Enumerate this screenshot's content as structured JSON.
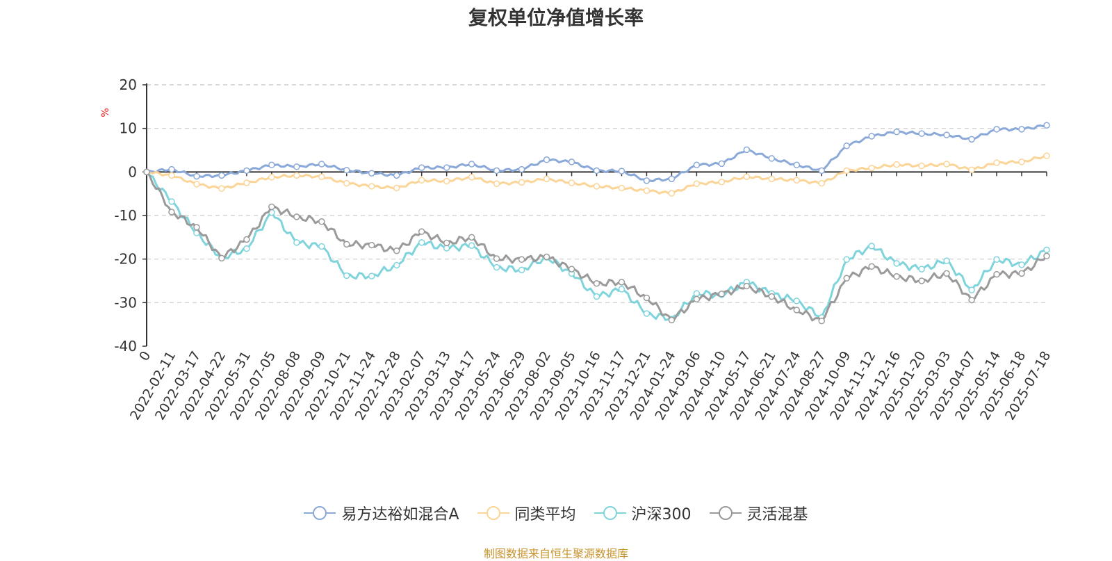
{
  "chart_data": {
    "type": "line",
    "title": "复权单位净值增长率",
    "ylabel": "%",
    "ylim": [
      -40,
      20
    ],
    "yticks": [
      20,
      10,
      0,
      -10,
      -20,
      -30,
      -40
    ],
    "grid": true,
    "legend_position": "bottom-center",
    "x_tick_labels": [
      "0",
      "2022-02-11",
      "2022-03-17",
      "2022-04-22",
      "2022-05-31",
      "2022-07-05",
      "2022-08-08",
      "2022-09-09",
      "2022-10-21",
      "2022-11-24",
      "2022-12-28",
      "2023-02-07",
      "2023-03-13",
      "2023-04-17",
      "2023-05-24",
      "2023-06-29",
      "2023-08-02",
      "2023-09-05",
      "2023-10-16",
      "2023-11-17",
      "2023-12-21",
      "2024-01-24",
      "2024-03-06",
      "2024-04-10",
      "2024-05-17",
      "2024-06-21",
      "2024-07-24",
      "2024-08-27",
      "2024-10-09",
      "2024-11-12",
      "2024-12-16",
      "2025-01-20",
      "2025-03-03",
      "2025-04-07",
      "2025-05-14",
      "2025-06-18",
      "2025-07-18"
    ],
    "series": [
      {
        "name": "易方达裕如混合A",
        "color": "#8aa8d8",
        "values": [
          0,
          0.6,
          -1.0,
          -0.8,
          0.3,
          1.6,
          1.2,
          1.8,
          0.4,
          -0.3,
          -0.8,
          1.0,
          1.0,
          1.8,
          0.3,
          0.6,
          2.8,
          2.3,
          0.3,
          0.2,
          -2.0,
          -1.6,
          1.6,
          1.9,
          5.1,
          3.1,
          1.6,
          0.3,
          6.0,
          8.2,
          9.2,
          8.8,
          8.5,
          7.5,
          9.8,
          9.8,
          10.7
        ]
      },
      {
        "name": "同类平均",
        "color": "#fbd498",
        "values": [
          0,
          -0.8,
          -2.8,
          -3.8,
          -2.5,
          -1.2,
          -0.8,
          -1.1,
          -2.6,
          -3.3,
          -3.7,
          -1.9,
          -2.1,
          -1.2,
          -2.7,
          -2.4,
          -1.6,
          -2.5,
          -3.3,
          -3.7,
          -4.3,
          -4.9,
          -2.7,
          -2.3,
          -1.1,
          -1.6,
          -1.9,
          -2.6,
          0.3,
          0.9,
          1.7,
          1.4,
          1.8,
          0.5,
          2.1,
          2.3,
          3.7
        ]
      },
      {
        "name": "沪深300",
        "color": "#7fd4dc",
        "values": [
          0,
          -6.8,
          -14.0,
          -19.8,
          -17.6,
          -9.3,
          -16.2,
          -17.1,
          -23.8,
          -23.9,
          -21.4,
          -16.2,
          -17.5,
          -16.9,
          -21.9,
          -22.5,
          -19.6,
          -23.3,
          -28.6,
          -26.9,
          -32.5,
          -33.8,
          -27.9,
          -28.2,
          -25.3,
          -27.9,
          -29.6,
          -33.4,
          -20.1,
          -17.0,
          -21.0,
          -22.3,
          -20.4,
          -27.1,
          -20.1,
          -21.3,
          -17.9
        ]
      },
      {
        "name": "灵活混基",
        "color": "#9a9a9a",
        "values": [
          0,
          -9.2,
          -12.7,
          -19.8,
          -15.5,
          -8.0,
          -10.3,
          -11.4,
          -16.6,
          -16.8,
          -18.1,
          -13.7,
          -16.3,
          -15.0,
          -19.9,
          -20.1,
          -19.5,
          -22.3,
          -25.6,
          -25.3,
          -28.9,
          -34.0,
          -29.2,
          -28.0,
          -26.2,
          -28.6,
          -31.7,
          -34.2,
          -24.4,
          -21.7,
          -24.0,
          -25.0,
          -23.3,
          -29.4,
          -23.5,
          -23.3,
          -19.3
        ]
      }
    ]
  },
  "source_note": "制图数据来自恒生聚源数据库"
}
